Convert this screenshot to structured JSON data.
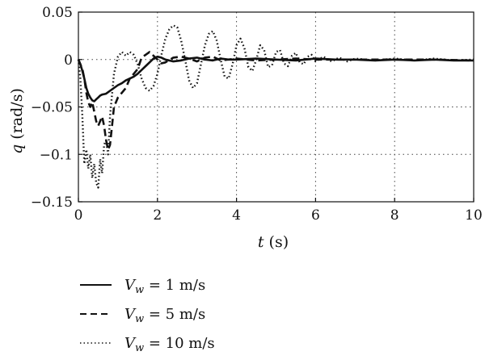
{
  "chart_data": {
    "type": "line",
    "title": "",
    "xlabel_var": "t",
    "xlabel_unit": "(s)",
    "ylabel_var": "q",
    "ylabel_unit": "(rad/s)",
    "xlim": [
      0,
      10
    ],
    "ylim": [
      -0.15,
      0.05
    ],
    "x_ticks": [
      0,
      2,
      4,
      6,
      8,
      10
    ],
    "y_ticks": [
      -0.15,
      -0.1,
      -0.05,
      0,
      0.05
    ],
    "x_tick_labels": [
      "0",
      "2",
      "4",
      "6",
      "8",
      "10"
    ],
    "y_tick_labels": [
      "−0.15",
      "−0.1",
      "−0.05",
      "0",
      "0.05"
    ],
    "grid": true,
    "legend_position": "bottom-left, below plot",
    "series": [
      {
        "name": "Vw = 1 m/s",
        "legend_var": "V",
        "legend_sub": "w",
        "legend_value": " = 1 m/s",
        "style": "solid",
        "x": [
          0,
          0.05,
          0.1,
          0.15,
          0.2,
          0.25,
          0.3,
          0.35,
          0.4,
          0.45,
          0.5,
          0.55,
          0.6,
          0.7,
          0.8,
          0.9,
          1.0,
          1.1,
          1.2,
          1.3,
          1.4,
          1.5,
          1.6,
          1.7,
          1.8,
          1.9,
          2.0,
          2.1,
          2.2,
          2.4,
          2.6,
          2.8,
          3.0,
          3.2,
          3.4,
          3.6,
          3.8,
          4.0,
          4.5,
          5.0,
          5.5,
          6.0,
          6.5,
          7.0,
          7.5,
          8.0,
          8.5,
          9.0,
          9.5,
          10.0
        ],
        "y": [
          0,
          -0.005,
          -0.012,
          -0.02,
          -0.03,
          -0.036,
          -0.04,
          -0.043,
          -0.044,
          -0.042,
          -0.04,
          -0.038,
          -0.037,
          -0.036,
          -0.033,
          -0.03,
          -0.027,
          -0.025,
          -0.022,
          -0.02,
          -0.018,
          -0.015,
          -0.011,
          -0.007,
          -0.003,
          0.001,
          0.003,
          0.002,
          0.0,
          -0.002,
          -0.001,
          0.001,
          0.002,
          0.0,
          -0.001,
          0.001,
          0.0,
          0.0,
          0.001,
          0.0,
          -0.001,
          0.001,
          0.0,
          0.0,
          -0.001,
          0.0,
          -0.001,
          0.0,
          -0.001,
          -0.001
        ]
      },
      {
        "name": "Vw = 5 m/s",
        "legend_var": "V",
        "legend_sub": "w",
        "legend_value": " = 5 m/s",
        "style": "dashed",
        "x": [
          0,
          0.1,
          0.15,
          0.2,
          0.25,
          0.3,
          0.35,
          0.4,
          0.45,
          0.5,
          0.55,
          0.6,
          0.65,
          0.7,
          0.75,
          0.8,
          0.85,
          0.9,
          1.0,
          1.1,
          1.2,
          1.3,
          1.4,
          1.5,
          1.6,
          1.7,
          1.8,
          1.9,
          2.0,
          2.1,
          2.2,
          2.4,
          2.6,
          2.8,
          3.0,
          3.2,
          3.4,
          3.6,
          4.0,
          4.5,
          5.0,
          5.5,
          6.0,
          7.0,
          8.0,
          9.0,
          10.0
        ],
        "y": [
          0,
          -0.01,
          -0.02,
          -0.035,
          -0.045,
          -0.05,
          -0.045,
          -0.055,
          -0.065,
          -0.07,
          -0.065,
          -0.06,
          -0.07,
          -0.085,
          -0.095,
          -0.09,
          -0.07,
          -0.05,
          -0.04,
          -0.035,
          -0.03,
          -0.02,
          -0.015,
          -0.01,
          0.002,
          0.005,
          0.008,
          0.004,
          0.0,
          -0.004,
          -0.003,
          0.002,
          0.003,
          0.001,
          -0.002,
          0.002,
          0.003,
          -0.001,
          0.001,
          -0.001,
          0.0,
          0.001,
          0.0,
          0.0,
          0.0,
          0.0,
          -0.001
        ]
      },
      {
        "name": "Vw = 10 m/s",
        "legend_var": "V",
        "legend_sub": "w",
        "legend_value": " = 10 m/s",
        "style": "dotted",
        "x": [
          0,
          0.05,
          0.1,
          0.15,
          0.2,
          0.25,
          0.3,
          0.35,
          0.4,
          0.45,
          0.5,
          0.55,
          0.6,
          0.65,
          0.7,
          0.75,
          0.8,
          0.9,
          1.0,
          1.1,
          1.2,
          1.3,
          1.4,
          1.5,
          1.6,
          1.7,
          1.8,
          1.9,
          2.0,
          2.1,
          2.2,
          2.3,
          2.4,
          2.5,
          2.6,
          2.7,
          2.8,
          2.9,
          3.0,
          3.1,
          3.2,
          3.3,
          3.4,
          3.5,
          3.6,
          3.7,
          3.8,
          3.9,
          4.0,
          4.1,
          4.2,
          4.3,
          4.4,
          4.5,
          4.6,
          4.7,
          4.8,
          4.9,
          5.0,
          5.1,
          5.2,
          5.3,
          5.4,
          5.5,
          5.6,
          5.7,
          5.8,
          5.9,
          6.0,
          6.2,
          6.4,
          6.6,
          6.8,
          7.0,
          7.5,
          8.0,
          8.5,
          9.0,
          9.5,
          10.0
        ],
        "y": [
          0,
          -0.02,
          -0.06,
          -0.11,
          -0.095,
          -0.115,
          -0.1,
          -0.125,
          -0.11,
          -0.13,
          -0.135,
          -0.105,
          -0.12,
          -0.09,
          -0.085,
          -0.1,
          -0.06,
          -0.015,
          0.003,
          0.008,
          0.004,
          0.008,
          0.005,
          -0.005,
          -0.02,
          -0.03,
          -0.033,
          -0.028,
          -0.015,
          0.005,
          0.022,
          0.032,
          0.036,
          0.034,
          0.02,
          0.0,
          -0.022,
          -0.03,
          -0.025,
          -0.005,
          0.015,
          0.027,
          0.03,
          0.02,
          0.0,
          -0.018,
          -0.02,
          -0.005,
          0.015,
          0.022,
          0.012,
          -0.008,
          -0.012,
          0.0,
          0.015,
          0.01,
          -0.008,
          -0.006,
          0.008,
          0.01,
          -0.004,
          -0.007,
          0.004,
          0.007,
          -0.003,
          -0.005,
          0.003,
          0.005,
          -0.002,
          0.003,
          -0.002,
          0.002,
          -0.002,
          0.001,
          -0.001,
          0.001,
          -0.001,
          0.001,
          -0.001,
          0.0
        ]
      }
    ]
  }
}
